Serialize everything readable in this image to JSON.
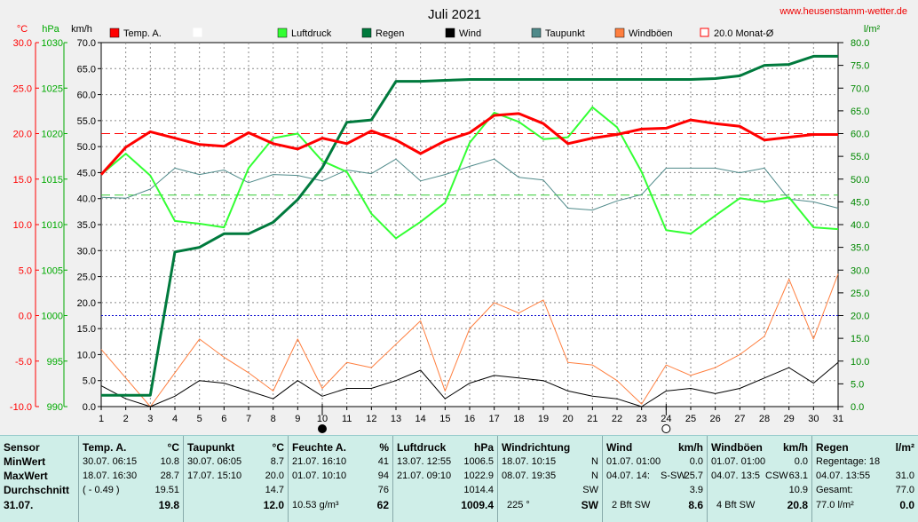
{
  "header": {
    "title": "Juli 2021",
    "website": "www.heusenstamm-wetter.de"
  },
  "units": {
    "celsius": "°C",
    "hpa": "hPa",
    "kmh": "km/h",
    "rain": "l/m²"
  },
  "legend": [
    {
      "label": "Temp. A.",
      "color": "#ff0000",
      "style": "filled"
    },
    {
      "label": "",
      "color": "#ffffff",
      "style": "outline"
    },
    {
      "label": "Luftdruck",
      "color": "#33ff33",
      "style": "filled"
    },
    {
      "label": "Regen",
      "color": "#007a3d",
      "style": "filled"
    },
    {
      "label": "Wind",
      "color": "#000000",
      "style": "filled"
    },
    {
      "label": "Taupunkt",
      "color": "#4f8a8a",
      "style": "filled"
    },
    {
      "label": "Windböen",
      "color": "#ff7f3f",
      "style": "filled"
    },
    {
      "label": "20.0 Monat-Ø",
      "color": "#ff0000",
      "style": "outline"
    }
  ],
  "chart_data": {
    "type": "line",
    "x": [
      1,
      2,
      3,
      4,
      5,
      6,
      7,
      8,
      9,
      10,
      11,
      12,
      13,
      14,
      15,
      16,
      17,
      18,
      19,
      20,
      21,
      22,
      23,
      24,
      25,
      26,
      27,
      28,
      29,
      30,
      31
    ],
    "axes": {
      "temp": {
        "min": -10,
        "max": 30,
        "ticks": [
          "30.0",
          "25.0",
          "20.0",
          "15.0",
          "10.0",
          "5.0",
          "0.0",
          "-5.0",
          "-10.0"
        ],
        "color": "#ff0000"
      },
      "pressure": {
        "min": 990,
        "max": 1030,
        "ticks": [
          "1030",
          "1025",
          "1020",
          "1015",
          "1010",
          "1005",
          "1000",
          "995",
          "990"
        ],
        "color": "#00aa00"
      },
      "wind": {
        "min": 0,
        "max": 70,
        "ticks": [
          "70.0",
          "65.0",
          "60.0",
          "55.0",
          "50.0",
          "45.0",
          "40.0",
          "35.0",
          "30.0",
          "25.0",
          "20.0",
          "15.0",
          "10.0",
          "5.0",
          "0.0"
        ],
        "color": "#000000"
      },
      "rain": {
        "min": 0,
        "max": 80,
        "ticks": [
          "80.0",
          "75.0",
          "70.0",
          "65.0",
          "60.0",
          "55.0",
          "50.0",
          "45.0",
          "40.0",
          "35.0",
          "30.0",
          "25.0",
          "20.0",
          "15.0",
          "10.0",
          "5.0",
          "0.0"
        ],
        "color": "#008800"
      }
    },
    "reference_lines": [
      {
        "name": "20.0 Monat-Ø",
        "axis": "temp",
        "value": 20.0,
        "color": "#ff0000",
        "dash": "10,5"
      },
      {
        "axis": "temp",
        "value": 0.0,
        "color": "#0000cc",
        "dash": "2,2"
      },
      {
        "axis": "rain",
        "value": 46.5,
        "color": "#33cc33",
        "dash": "10,5"
      }
    ],
    "series": [
      {
        "name": "Windböen",
        "axis": "wind",
        "color": "#ff7f3f",
        "width": 1,
        "values": [
          11,
          5.5,
          0,
          6.5,
          13,
          9.5,
          6.5,
          3,
          13,
          3.5,
          8.5,
          7.5,
          12,
          16.5,
          3,
          15,
          20,
          18,
          20.5,
          8.5,
          8,
          5,
          0.5,
          8,
          6,
          7.5,
          10,
          13.5,
          24.5,
          13,
          25.5
        ]
      },
      {
        "name": "Taupunkt",
        "axis": "temp",
        "color": "#4f8a8a",
        "width": 1,
        "values": [
          13,
          12.9,
          13.9,
          16.2,
          15.5,
          16,
          14.6,
          15.5,
          15.4,
          14.8,
          16,
          15.6,
          17.2,
          14.8,
          15.5,
          16.4,
          17.2,
          15.2,
          14.9,
          11.8,
          11.6,
          12.6,
          13.3,
          16.2,
          16.2,
          16.2,
          15.7,
          16.2,
          12.8,
          12.5,
          11.8
        ]
      },
      {
        "name": "Wind",
        "axis": "wind",
        "color": "#000000",
        "width": 1,
        "values": [
          4,
          1.5,
          0,
          2,
          5,
          4.5,
          3,
          1.5,
          5,
          2,
          3.5,
          3.5,
          5,
          7,
          1.5,
          4.5,
          6,
          5.5,
          5,
          3,
          2,
          1.5,
          0,
          3,
          3.5,
          2.5,
          3.5,
          5.5,
          7.5,
          4.5,
          8.5
        ]
      },
      {
        "name": "Luftdruck",
        "axis": "pressure",
        "color": "#33ff33",
        "width": 2,
        "values": [
          1015.5,
          1017.8,
          1015.4,
          1010.4,
          1010.1,
          1009.7,
          1016.2,
          1019.5,
          1020.0,
          1017.0,
          1015.8,
          1011.2,
          1008.5,
          1010.3,
          1012.4,
          1019.0,
          1022.3,
          1021.3,
          1019.4,
          1019.6,
          1022.9,
          1020.7,
          1015.8,
          1009.4,
          1009.0,
          1011.0,
          1012.9,
          1012.5,
          1013.0,
          1009.7,
          1009.5
        ]
      },
      {
        "name": "Regen",
        "axis": "rain",
        "color": "#007a3d",
        "width": 3,
        "values": [
          2.5,
          2.5,
          2.5,
          34,
          35,
          38,
          38,
          40.5,
          45.5,
          52.5,
          62.5,
          63,
          71.5,
          71.5,
          71.7,
          71.9,
          71.9,
          71.9,
          71.9,
          71.9,
          71.9,
          71.9,
          71.9,
          71.9,
          71.9,
          72.1,
          72.7,
          75,
          75.2,
          77,
          77
        ]
      },
      {
        "name": "Temp. A.",
        "axis": "temp",
        "color": "#ff0000",
        "width": 3,
        "values": [
          15.5,
          18.5,
          20.2,
          19.5,
          18.8,
          18.6,
          20.1,
          18.9,
          18.3,
          19.5,
          18.9,
          20.3,
          19.3,
          17.8,
          19.2,
          20.1,
          22,
          22.2,
          21.1,
          18.9,
          19.5,
          19.9,
          20.5,
          20.6,
          21.5,
          21.1,
          20.8,
          19.3,
          19.6,
          19.9,
          19.9
        ]
      }
    ],
    "markers": [
      {
        "x": 10,
        "style": "filled"
      },
      {
        "x": 24,
        "style": "outline"
      }
    ]
  },
  "summary": {
    "row_labels": [
      "Sensor",
      "MinWert",
      "MaxWert",
      "Durchschnitt",
      "31.07."
    ],
    "temp": {
      "title": "Temp. A.",
      "unit": "°C",
      "rows": [
        [
          "30.07.  06:15",
          "10.8"
        ],
        [
          "18.07.  16:30",
          "28.7"
        ],
        [
          "( - 0.49 )",
          "19.51"
        ],
        [
          "",
          "19.8"
        ]
      ]
    },
    "taupunkt": {
      "title": "Taupunkt",
      "unit": "°C",
      "rows": [
        [
          "30.07.  06:05",
          "8.7"
        ],
        [
          "17.07.  15:10",
          "20.0"
        ],
        [
          "",
          "14.7"
        ],
        [
          "",
          "12.0"
        ]
      ]
    },
    "feuchte": {
      "title": "Feuchte A.",
      "unit": "%",
      "rows": [
        [
          "21.07.  16:10",
          "41"
        ],
        [
          "01.07.  10:10",
          "94"
        ],
        [
          "",
          "76"
        ],
        [
          "10.53 g/m³",
          "62"
        ]
      ]
    },
    "luftdruck": {
      "title": "Luftdruck",
      "unit": "hPa",
      "rows": [
        [
          "13.07.  12:55",
          "1006.5"
        ],
        [
          "21.07.  09:10",
          "1022.9"
        ],
        [
          "",
          "1014.4"
        ],
        [
          "",
          "1009.4"
        ]
      ]
    },
    "windrichtung": {
      "title": "Windrichtung",
      "unit": "",
      "rows": [
        [
          "18.07.  10:15",
          "N"
        ],
        [
          "08.07.  19:35",
          "N"
        ],
        [
          "",
          "SW"
        ],
        [
          "225 °",
          "SW"
        ]
      ]
    },
    "wind": {
      "title": "Wind",
      "unit": "km/h",
      "rows": [
        [
          "01.07.  01:00",
          "0.0"
        ],
        [
          "04.07.  14:",
          "S-SW",
          "25.7"
        ],
        [
          "",
          "3.9"
        ],
        [
          "2 Bft SW",
          "8.6"
        ]
      ]
    },
    "windboeen": {
      "title": "Windböen",
      "unit": "km/h",
      "rows": [
        [
          "01.07.  01:00",
          "0.0"
        ],
        [
          "04.07.  13:5",
          "CSW",
          "63.1"
        ],
        [
          "",
          "10.9"
        ],
        [
          "4 Bft SW",
          "20.8"
        ]
      ]
    },
    "regen": {
      "title": "Regen",
      "unit": "l/m²",
      "rows": [
        [
          "Regentage: 18",
          ""
        ],
        [
          "04.07.  13:55",
          "31.0"
        ],
        [
          "Gesamt:",
          "77.0"
        ],
        [
          "77.0 l/m²",
          "0.0"
        ]
      ]
    }
  }
}
